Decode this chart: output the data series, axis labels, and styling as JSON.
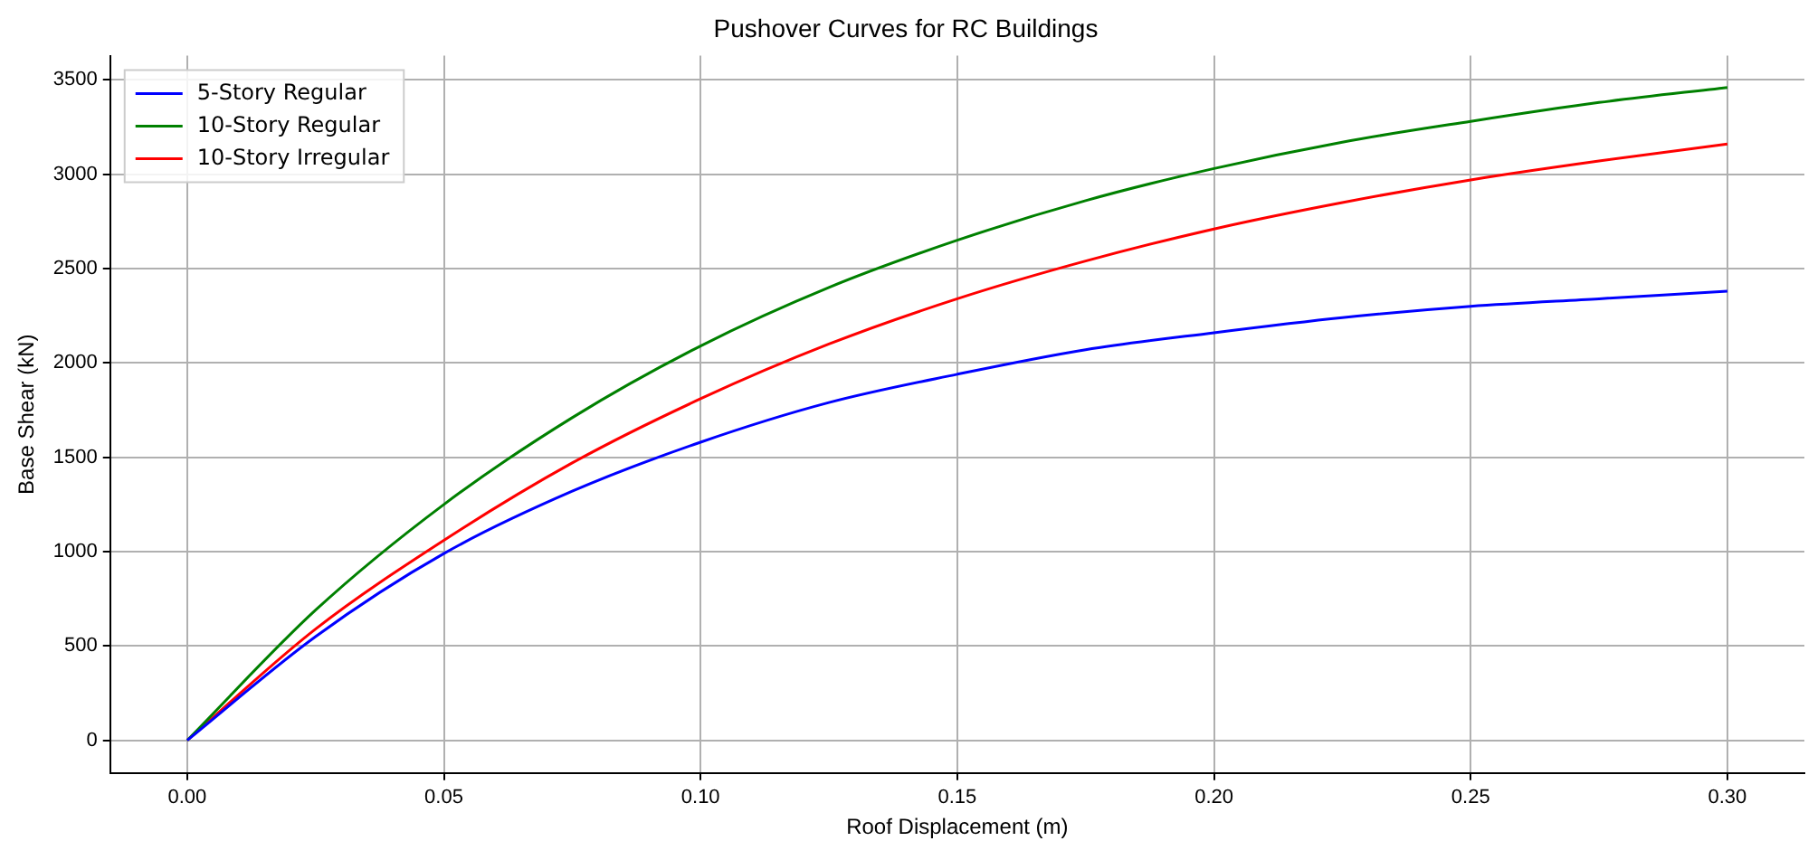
{
  "chart_data": {
    "type": "line",
    "title": "Pushover Curves for RC Buildings",
    "xlabel": "Roof Displacement (m)",
    "ylabel": "Base Shear (kN)",
    "x": [
      0,
      0.025,
      0.05,
      0.075,
      0.1,
      0.125,
      0.15,
      0.175,
      0.2,
      0.225,
      0.25,
      0.275,
      0.3
    ],
    "series": [
      {
        "name": "5-Story Regular",
        "color": "#0000ff",
        "values": [
          0,
          550,
          990,
          1320,
          1580,
          1790,
          1940,
          2070,
          2160,
          2240,
          2300,
          2340,
          2380
        ]
      },
      {
        "name": "10-Story Regular",
        "color": "#008000",
        "values": [
          0,
          690,
          1250,
          1710,
          2090,
          2400,
          2650,
          2860,
          3030,
          3170,
          3280,
          3380,
          3460
        ]
      },
      {
        "name": "10-Story Irregular",
        "color": "#ff0000",
        "values": [
          0,
          590,
          1060,
          1470,
          1810,
          2100,
          2340,
          2540,
          2710,
          2850,
          2970,
          3070,
          3160
        ]
      }
    ],
    "xlim": [
      -0.015,
      0.315
    ],
    "ylim": [
      -173,
      3628
    ],
    "xticks": [
      {
        "value": 0,
        "label": "0.00"
      },
      {
        "value": 0.05,
        "label": "0.05"
      },
      {
        "value": 0.1,
        "label": "0.10"
      },
      {
        "value": 0.15,
        "label": "0.15"
      },
      {
        "value": 0.2,
        "label": "0.20"
      },
      {
        "value": 0.25,
        "label": "0.25"
      },
      {
        "value": 0.3,
        "label": "0.30"
      }
    ],
    "yticks": [
      0,
      500,
      1000,
      1500,
      2000,
      2500,
      3000,
      3500
    ],
    "grid": true,
    "legend": "top left",
    "marker": "none",
    "line_style": "solid"
  }
}
